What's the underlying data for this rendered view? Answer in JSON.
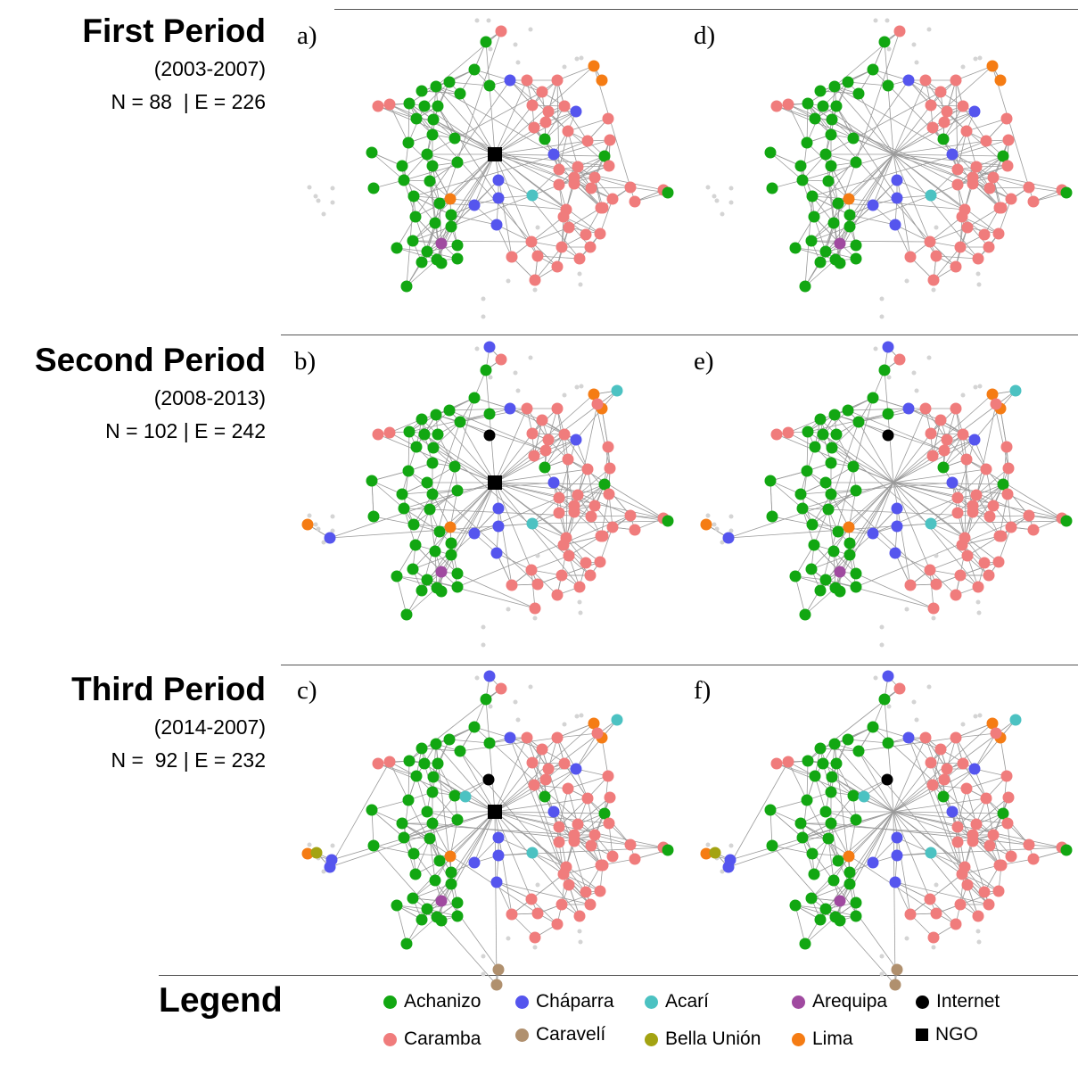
{
  "periods": [
    {
      "title": "First Period",
      "years": "(2003-2007)",
      "stats": "N = 88  | E = 226"
    },
    {
      "title": "Second Period",
      "years": "(2008-2013)",
      "stats": "N = 102 | E = 242"
    },
    {
      "title": "Third Period",
      "years": "(2014-2007)",
      "stats": "N =  92 | E = 232"
    }
  ],
  "panel_labels": [
    "a)",
    "b)",
    "c)",
    "d)",
    "e)",
    "f)"
  ],
  "legend": {
    "title": "Legend",
    "items": [
      {
        "label": "Achanizo",
        "color": "#12a712",
        "shape": "circle"
      },
      {
        "label": "Cháparra",
        "color": "#5555ee",
        "shape": "circle"
      },
      {
        "label": "Acarí",
        "color": "#4cc2c2",
        "shape": "circle"
      },
      {
        "label": "Arequipa",
        "color": "#a04aa0",
        "shape": "circle"
      },
      {
        "label": "Internet",
        "color": "#000000",
        "shape": "circle"
      },
      {
        "label": "Caramba",
        "color": "#f07c7c",
        "shape": "circle"
      },
      {
        "label": "Caravelí",
        "color": "#b0906e",
        "shape": "circle"
      },
      {
        "label": "Bella Unión",
        "color": "#a3a312",
        "shape": "circle"
      },
      {
        "label": "Lima",
        "color": "#f57c14",
        "shape": "circle"
      },
      {
        "label": "NGO",
        "color": "#000000",
        "shape": "square"
      }
    ]
  }
}
